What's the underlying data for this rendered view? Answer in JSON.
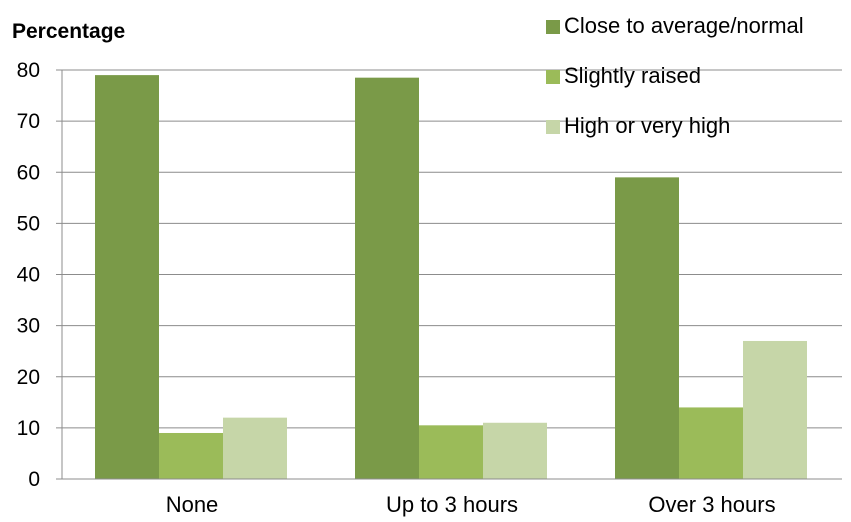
{
  "chart_data": {
    "type": "bar",
    "ylabel": "Percentage",
    "xlabel": "",
    "ylim": [
      0,
      80
    ],
    "yticks": [
      "0",
      "10",
      "20",
      "30",
      "40",
      "50",
      "60",
      "70",
      "80"
    ],
    "grid": true,
    "legend_position": "top-right",
    "categories": [
      "None",
      "Up to 3 hours",
      "Over 3 hours"
    ],
    "series": [
      {
        "name": "Close to average/normal",
        "color": "#7a9a48",
        "values": [
          79,
          78.5,
          59
        ]
      },
      {
        "name": "Slightly raised",
        "color": "#9bbb59",
        "values": [
          9,
          10.5,
          14
        ]
      },
      {
        "name": "High or very high",
        "color": "#c6d6a8",
        "values": [
          12,
          11,
          27
        ]
      }
    ]
  }
}
